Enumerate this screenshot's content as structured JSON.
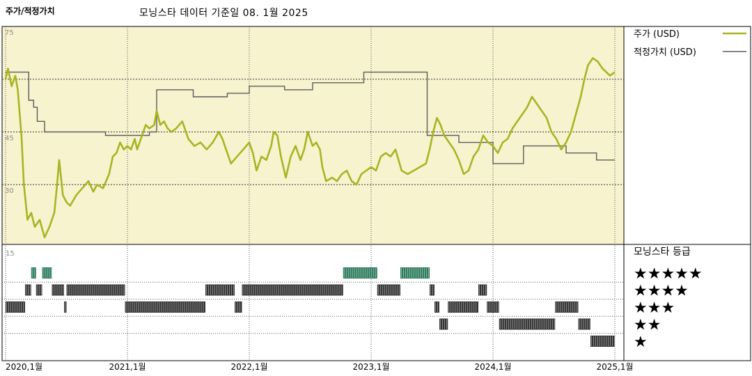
{
  "header": {
    "title": "주가/적정가치",
    "subtitle": "모닝스타 데이터 기준일 08. 1월 2025"
  },
  "chart_data": {
    "type": "line",
    "y_ticks": [
      {
        "value": 75,
        "label": "75"
      },
      {
        "value": 60,
        "label": ""
      },
      {
        "value": 45,
        "label": "45"
      },
      {
        "value": 30,
        "label": "30"
      }
    ],
    "ylim": [
      13,
      75
    ],
    "x_ticks": [
      "2020,1월",
      "2021,1월",
      "2022,1월",
      "2023,1월",
      "2024,1월",
      "2025,1월"
    ],
    "xlim": [
      2020.0,
      2025.0
    ],
    "grid": true,
    "legend": {
      "position": "right",
      "entries": [
        "주가 (USD)",
        "적정가치 (USD)"
      ]
    },
    "colors": {
      "price": "#a8b422",
      "fair_value": "#5b5b5b",
      "plot_bg": "#f7f3cf",
      "rating5": "#2f7d5e",
      "rating_other": "#333333"
    },
    "series": [
      {
        "name": "주가 (USD)",
        "points": [
          [
            2020.0,
            60
          ],
          [
            2020.02,
            63
          ],
          [
            2020.05,
            58
          ],
          [
            2020.08,
            61
          ],
          [
            2020.1,
            57
          ],
          [
            2020.13,
            44
          ],
          [
            2020.15,
            30
          ],
          [
            2020.18,
            20
          ],
          [
            2020.21,
            22
          ],
          [
            2020.24,
            18
          ],
          [
            2020.28,
            20
          ],
          [
            2020.32,
            15
          ],
          [
            2020.36,
            18
          ],
          [
            2020.4,
            22
          ],
          [
            2020.42,
            29
          ],
          [
            2020.44,
            37
          ],
          [
            2020.47,
            27
          ],
          [
            2020.5,
            25
          ],
          [
            2020.53,
            24
          ],
          [
            2020.58,
            27
          ],
          [
            2020.63,
            29
          ],
          [
            2020.68,
            31
          ],
          [
            2020.72,
            28
          ],
          [
            2020.75,
            30
          ],
          [
            2020.8,
            29
          ],
          [
            2020.85,
            33
          ],
          [
            2020.88,
            38
          ],
          [
            2020.91,
            39
          ],
          [
            2020.94,
            42
          ],
          [
            2020.97,
            40
          ],
          [
            2021.0,
            41
          ],
          [
            2021.03,
            40
          ],
          [
            2021.06,
            43
          ],
          [
            2021.08,
            40
          ],
          [
            2021.12,
            44
          ],
          [
            2021.15,
            47
          ],
          [
            2021.18,
            46
          ],
          [
            2021.22,
            47
          ],
          [
            2021.24,
            51
          ],
          [
            2021.27,
            47
          ],
          [
            2021.3,
            48
          ],
          [
            2021.33,
            46
          ],
          [
            2021.36,
            45
          ],
          [
            2021.4,
            46
          ],
          [
            2021.45,
            48
          ],
          [
            2021.5,
            43
          ],
          [
            2021.55,
            41
          ],
          [
            2021.6,
            42
          ],
          [
            2021.65,
            40
          ],
          [
            2021.7,
            42
          ],
          [
            2021.75,
            45
          ],
          [
            2021.78,
            43
          ],
          [
            2021.81,
            40
          ],
          [
            2021.85,
            36
          ],
          [
            2021.9,
            38
          ],
          [
            2021.95,
            40
          ],
          [
            2022.0,
            42
          ],
          [
            2022.03,
            39
          ],
          [
            2022.06,
            34
          ],
          [
            2022.1,
            38
          ],
          [
            2022.14,
            37
          ],
          [
            2022.18,
            41
          ],
          [
            2022.2,
            45
          ],
          [
            2022.23,
            44
          ],
          [
            2022.26,
            38
          ],
          [
            2022.3,
            32
          ],
          [
            2022.34,
            38
          ],
          [
            2022.38,
            41
          ],
          [
            2022.42,
            37
          ],
          [
            2022.45,
            40
          ],
          [
            2022.48,
            45
          ],
          [
            2022.52,
            41
          ],
          [
            2022.55,
            42
          ],
          [
            2022.58,
            40
          ],
          [
            2022.6,
            35
          ],
          [
            2022.63,
            31
          ],
          [
            2022.68,
            32
          ],
          [
            2022.72,
            31
          ],
          [
            2022.76,
            33
          ],
          [
            2022.8,
            34
          ],
          [
            2022.84,
            31
          ],
          [
            2022.88,
            30
          ],
          [
            2022.92,
            33
          ],
          [
            2022.96,
            34
          ],
          [
            2023.0,
            35
          ],
          [
            2023.04,
            34
          ],
          [
            2023.08,
            38
          ],
          [
            2023.12,
            39
          ],
          [
            2023.16,
            38
          ],
          [
            2023.2,
            40
          ],
          [
            2023.25,
            34
          ],
          [
            2023.3,
            33
          ],
          [
            2023.35,
            34
          ],
          [
            2023.4,
            35
          ],
          [
            2023.45,
            36
          ],
          [
            2023.48,
            40
          ],
          [
            2023.51,
            45
          ],
          [
            2023.54,
            49
          ],
          [
            2023.57,
            47
          ],
          [
            2023.6,
            44
          ],
          [
            2023.64,
            42
          ],
          [
            2023.68,
            40
          ],
          [
            2023.72,
            37
          ],
          [
            2023.76,
            33
          ],
          [
            2023.8,
            34
          ],
          [
            2023.84,
            38
          ],
          [
            2023.88,
            40
          ],
          [
            2023.92,
            44
          ],
          [
            2023.96,
            42
          ],
          [
            2024.0,
            41
          ],
          [
            2024.04,
            39
          ],
          [
            2024.08,
            42
          ],
          [
            2024.12,
            43
          ],
          [
            2024.16,
            46
          ],
          [
            2024.2,
            48
          ],
          [
            2024.24,
            50
          ],
          [
            2024.28,
            52
          ],
          [
            2024.32,
            55
          ],
          [
            2024.36,
            53
          ],
          [
            2024.4,
            51
          ],
          [
            2024.44,
            49
          ],
          [
            2024.48,
            45
          ],
          [
            2024.52,
            43
          ],
          [
            2024.56,
            40
          ],
          [
            2024.6,
            42
          ],
          [
            2024.64,
            45
          ],
          [
            2024.68,
            50
          ],
          [
            2024.72,
            55
          ],
          [
            2024.75,
            60
          ],
          [
            2024.78,
            64
          ],
          [
            2024.82,
            66
          ],
          [
            2024.86,
            65
          ],
          [
            2024.9,
            63
          ],
          [
            2024.93,
            62
          ],
          [
            2024.96,
            61
          ],
          [
            2025.0,
            62
          ]
        ]
      },
      {
        "name": "적정가치 (USD)",
        "points": [
          [
            2020.0,
            62
          ],
          [
            2020.19,
            62
          ],
          [
            2020.19,
            54
          ],
          [
            2020.23,
            54
          ],
          [
            2020.23,
            52
          ],
          [
            2020.26,
            52
          ],
          [
            2020.26,
            48
          ],
          [
            2020.32,
            48
          ],
          [
            2020.32,
            45
          ],
          [
            2020.82,
            45
          ],
          [
            2020.82,
            44
          ],
          [
            2021.18,
            44
          ],
          [
            2021.18,
            45
          ],
          [
            2021.24,
            45
          ],
          [
            2021.24,
            57
          ],
          [
            2021.54,
            57
          ],
          [
            2021.54,
            55
          ],
          [
            2021.82,
            55
          ],
          [
            2021.82,
            56
          ],
          [
            2022.0,
            56
          ],
          [
            2022.0,
            58
          ],
          [
            2022.29,
            58
          ],
          [
            2022.29,
            57
          ],
          [
            2022.52,
            57
          ],
          [
            2022.52,
            59
          ],
          [
            2022.94,
            59
          ],
          [
            2022.94,
            62
          ],
          [
            2023.46,
            62
          ],
          [
            2023.46,
            44
          ],
          [
            2023.72,
            44
          ],
          [
            2023.72,
            42
          ],
          [
            2024.0,
            42
          ],
          [
            2024.0,
            36
          ],
          [
            2024.25,
            36
          ],
          [
            2024.25,
            41
          ],
          [
            2024.6,
            41
          ],
          [
            2024.6,
            39
          ],
          [
            2024.85,
            39
          ],
          [
            2024.85,
            37
          ],
          [
            2025.0,
            37
          ]
        ]
      }
    ],
    "rating": {
      "title": "모닝스타 등급",
      "axis_label": "15",
      "levels": [
        {
          "stars": 5,
          "label": "★★★★★"
        },
        {
          "stars": 4,
          "label": "★★★★"
        },
        {
          "stars": 3,
          "label": "★★★"
        },
        {
          "stars": 2,
          "label": "★★"
        },
        {
          "stars": 1,
          "label": "★"
        }
      ],
      "periods": [
        {
          "start": 2020.0,
          "end": 2020.16,
          "stars": 3
        },
        {
          "start": 2020.16,
          "end": 2020.21,
          "stars": 4
        },
        {
          "start": 2020.21,
          "end": 2020.25,
          "stars": 5
        },
        {
          "start": 2020.25,
          "end": 2020.3,
          "stars": 4
        },
        {
          "start": 2020.3,
          "end": 2020.38,
          "stars": 5
        },
        {
          "start": 2020.38,
          "end": 2020.48,
          "stars": 4
        },
        {
          "start": 2020.48,
          "end": 2020.5,
          "stars": 3
        },
        {
          "start": 2020.5,
          "end": 2020.98,
          "stars": 4
        },
        {
          "start": 2020.98,
          "end": 2021.64,
          "stars": 3
        },
        {
          "start": 2021.64,
          "end": 2021.88,
          "stars": 4
        },
        {
          "start": 2021.88,
          "end": 2021.94,
          "stars": 3
        },
        {
          "start": 2021.94,
          "end": 2022.77,
          "stars": 4
        },
        {
          "start": 2022.77,
          "end": 2023.05,
          "stars": 5
        },
        {
          "start": 2023.05,
          "end": 2023.24,
          "stars": 4
        },
        {
          "start": 2023.24,
          "end": 2023.48,
          "stars": 5
        },
        {
          "start": 2023.48,
          "end": 2023.52,
          "stars": 4
        },
        {
          "start": 2023.52,
          "end": 2023.56,
          "stars": 3
        },
        {
          "start": 2023.56,
          "end": 2023.63,
          "stars": 2
        },
        {
          "start": 2023.63,
          "end": 2023.88,
          "stars": 3
        },
        {
          "start": 2023.88,
          "end": 2023.95,
          "stars": 4
        },
        {
          "start": 2023.95,
          "end": 2024.05,
          "stars": 3
        },
        {
          "start": 2024.05,
          "end": 2024.51,
          "stars": 2
        },
        {
          "start": 2024.51,
          "end": 2024.7,
          "stars": 3
        },
        {
          "start": 2024.7,
          "end": 2024.8,
          "stars": 2
        },
        {
          "start": 2024.8,
          "end": 2025.0,
          "stars": 1
        }
      ]
    }
  }
}
